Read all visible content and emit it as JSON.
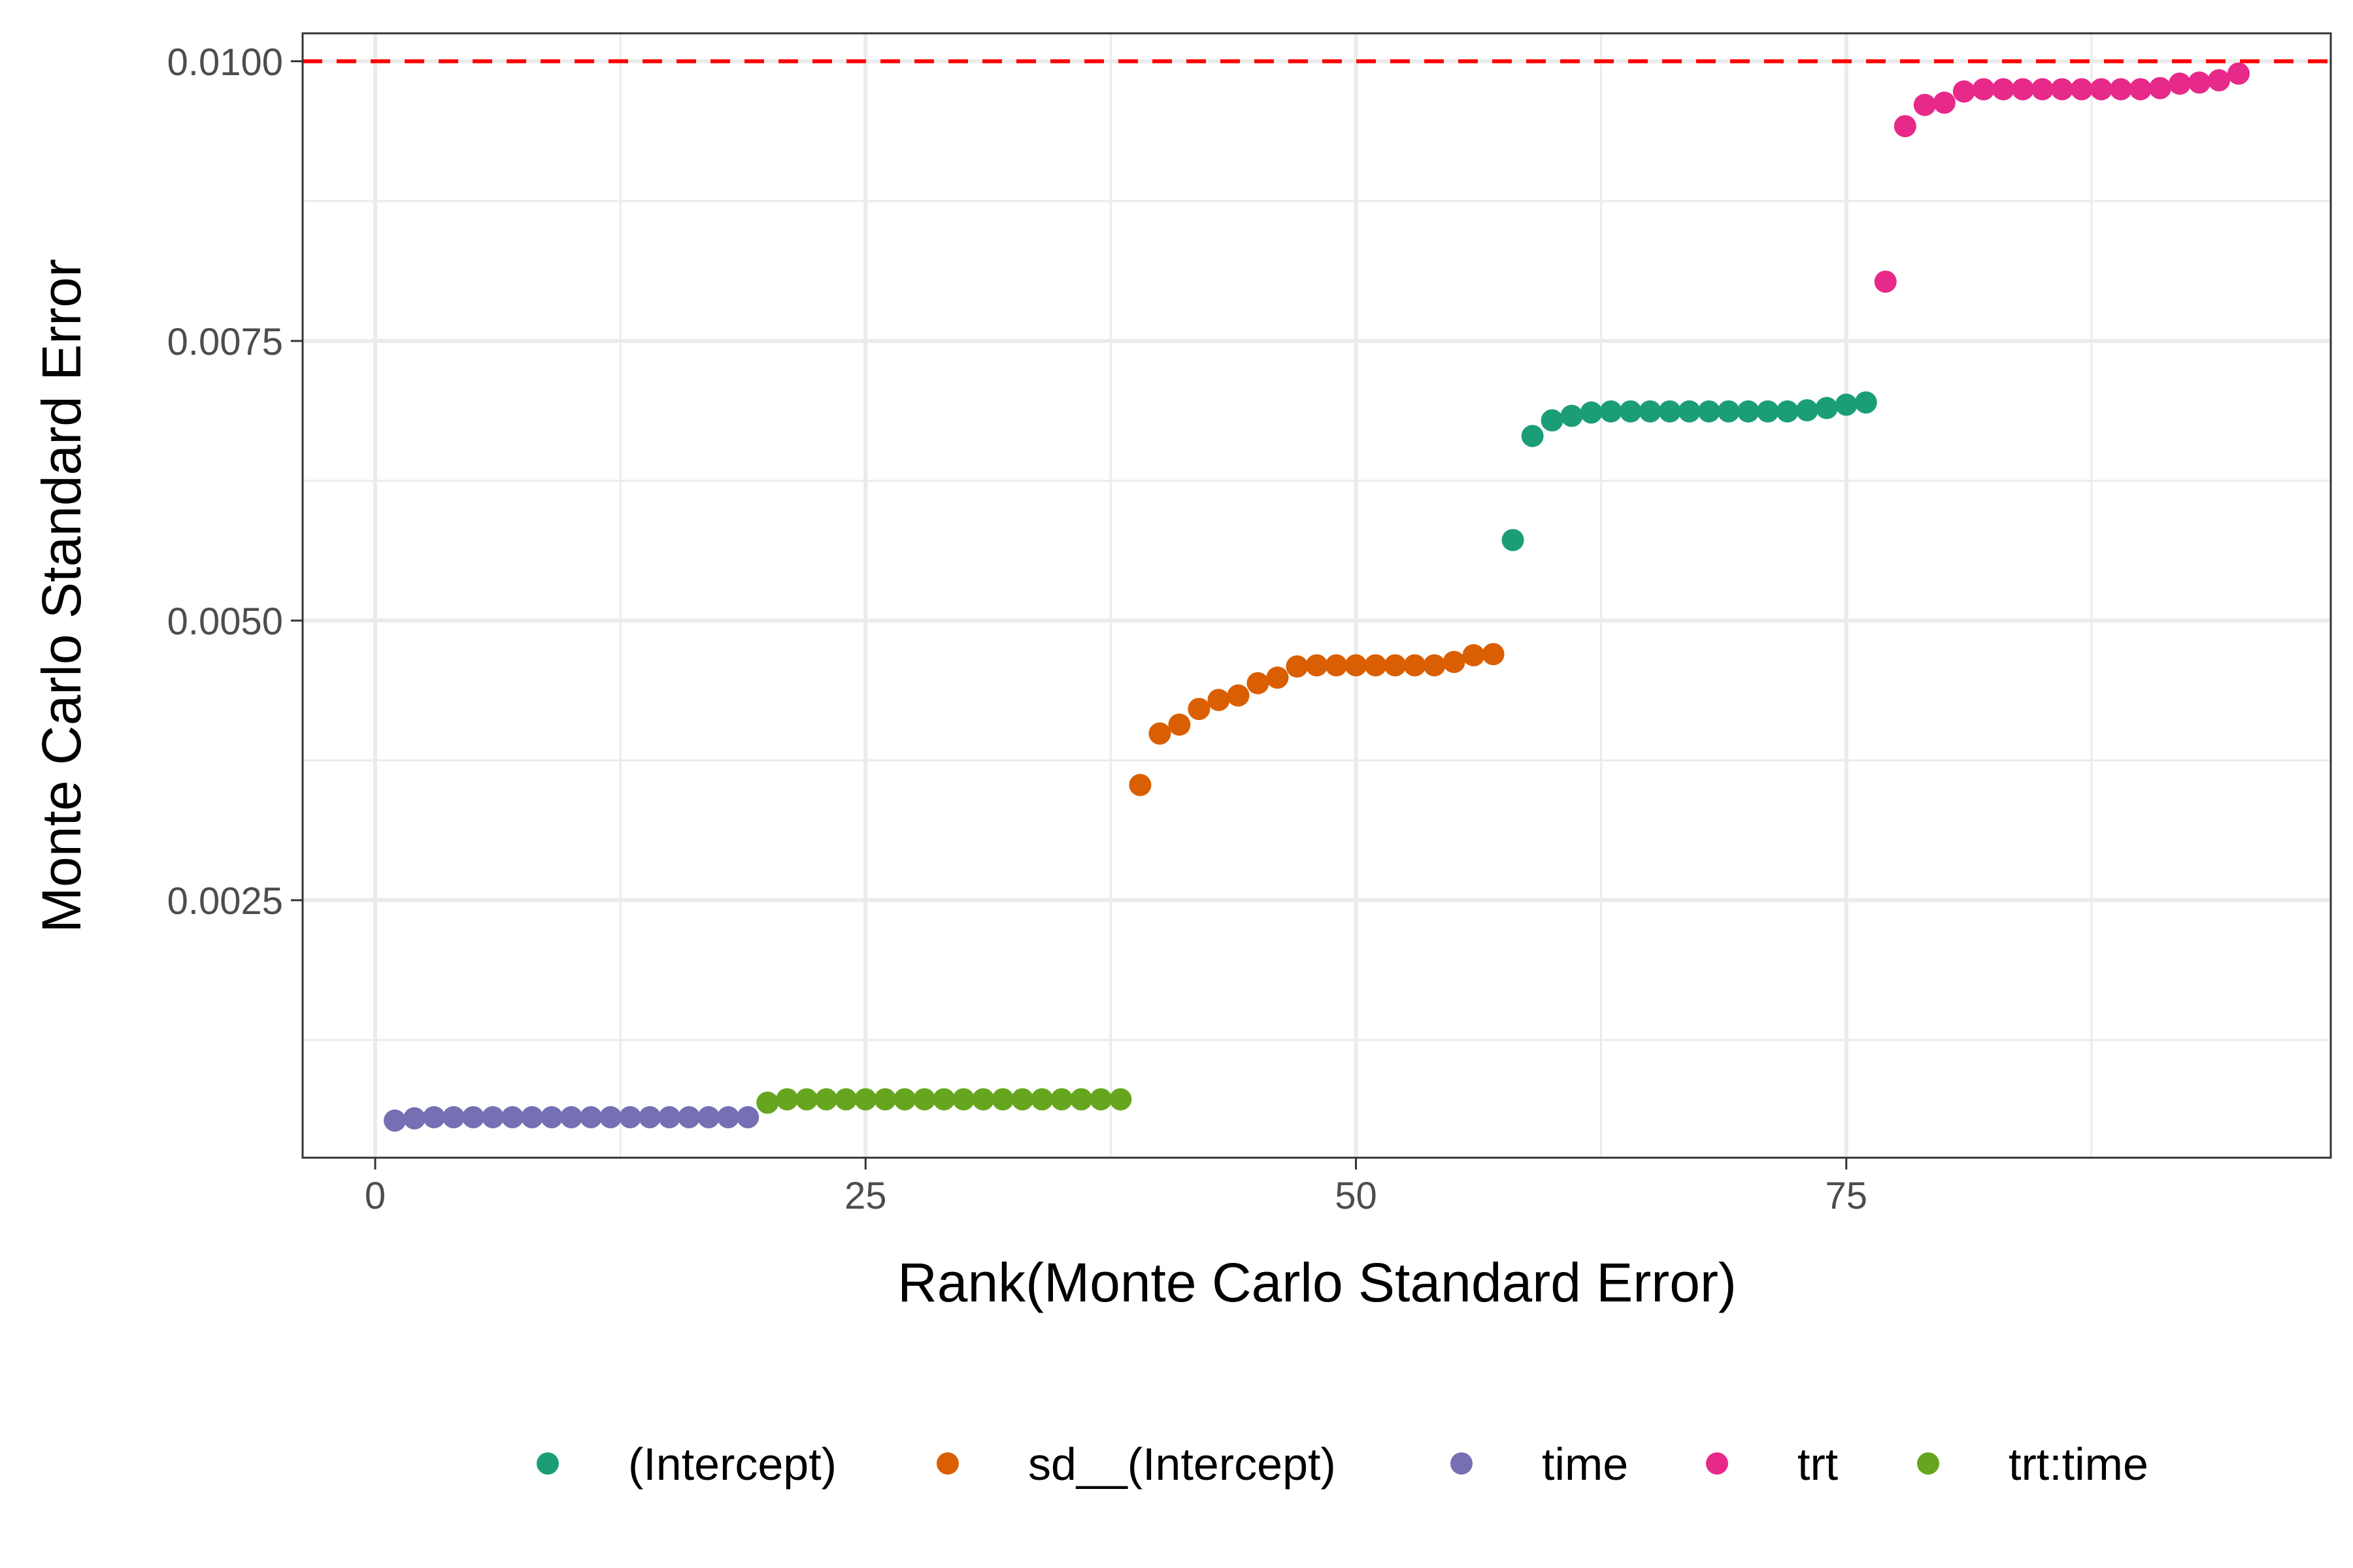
{
  "chart_data": {
    "type": "scatter",
    "title": "",
    "xlabel": "Rank(Monte Carlo Standard Error)",
    "ylabel": "Monte Carlo Standard Error",
    "xlim": [
      -3.7,
      99.7
    ],
    "ylim": [
      0.000198,
      0.01025
    ],
    "x_ticks": [
      {
        "value": 0,
        "label": "0"
      },
      {
        "value": 25,
        "label": "25"
      },
      {
        "value": 50,
        "label": "50"
      },
      {
        "value": 75,
        "label": "75"
      }
    ],
    "y_ticks": [
      {
        "value": 0.0025,
        "label": "0.0025"
      },
      {
        "value": 0.005,
        "label": "0.0050"
      },
      {
        "value": 0.0075,
        "label": "0.0075"
      },
      {
        "value": 0.01,
        "label": "0.0100"
      }
    ],
    "x_minor_ticks": [
      12.5,
      37.5,
      62.5,
      87.5
    ],
    "y_minor_ticks": [
      0.00125,
      0.00375,
      0.00625,
      0.00875
    ],
    "grid": true,
    "reference_line": {
      "y": 0.01,
      "color": "#FF0000",
      "style": "dashed"
    },
    "legend": {
      "position": "bottom"
    },
    "series": [
      {
        "name": "(Intercept)",
        "color": "#1B9E77",
        "x": [
          58,
          59,
          60,
          61,
          62,
          63,
          64,
          65,
          66,
          67,
          68,
          69,
          70,
          71,
          72,
          73,
          74,
          75,
          76
        ],
        "y": [
          0.00572,
          0.00665,
          0.00679,
          0.00683,
          0.00686,
          0.00687,
          0.00687,
          0.00687,
          0.00687,
          0.00687,
          0.00687,
          0.00687,
          0.00687,
          0.00687,
          0.00687,
          0.00688,
          0.0069,
          0.00693,
          0.00695
        ]
      },
      {
        "name": "sd__(Intercept)",
        "color": "#D95F02",
        "x": [
          39,
          40,
          41,
          42,
          43,
          44,
          45,
          46,
          47,
          48,
          49,
          50,
          51,
          52,
          53,
          54,
          55,
          56,
          57
        ],
        "y": [
          0.00353,
          0.00399,
          0.00407,
          0.00421,
          0.00429,
          0.00433,
          0.00444,
          0.00449,
          0.00459,
          0.0046,
          0.0046,
          0.0046,
          0.0046,
          0.0046,
          0.0046,
          0.0046,
          0.00463,
          0.00469,
          0.0047
        ]
      },
      {
        "name": "time",
        "color": "#7570B3",
        "x": [
          1,
          2,
          3,
          4,
          5,
          6,
          7,
          8,
          9,
          10,
          11,
          12,
          13,
          14,
          15,
          16,
          17,
          18,
          19
        ],
        "y": [
          0.00053,
          0.00055,
          0.00056,
          0.00056,
          0.00056,
          0.00056,
          0.00056,
          0.00056,
          0.00056,
          0.00056,
          0.00056,
          0.00056,
          0.00056,
          0.00056,
          0.00056,
          0.00056,
          0.00056,
          0.00056,
          0.00056
        ]
      },
      {
        "name": "trt",
        "color": "#E7298A",
        "x": [
          77,
          78,
          79,
          80,
          81,
          82,
          83,
          84,
          85,
          86,
          87,
          88,
          89,
          90,
          91,
          92,
          93,
          94,
          95
        ],
        "y": [
          0.00803,
          0.00942,
          0.00961,
          0.00963,
          0.00973,
          0.00975,
          0.00975,
          0.00975,
          0.00975,
          0.00975,
          0.00975,
          0.00975,
          0.00975,
          0.00975,
          0.00976,
          0.0098,
          0.00981,
          0.00983,
          0.00989
        ]
      },
      {
        "name": "trt:time",
        "color": "#66A61E",
        "x": [
          20,
          21,
          22,
          23,
          24,
          25,
          26,
          27,
          28,
          29,
          30,
          31,
          32,
          33,
          34,
          35,
          36,
          37,
          38
        ],
        "y": [
          0.00069,
          0.00072,
          0.00072,
          0.00072,
          0.00072,
          0.00072,
          0.00072,
          0.00072,
          0.00072,
          0.00072,
          0.00072,
          0.00072,
          0.00072,
          0.00072,
          0.00072,
          0.00072,
          0.00072,
          0.00072,
          0.00072
        ]
      }
    ]
  }
}
